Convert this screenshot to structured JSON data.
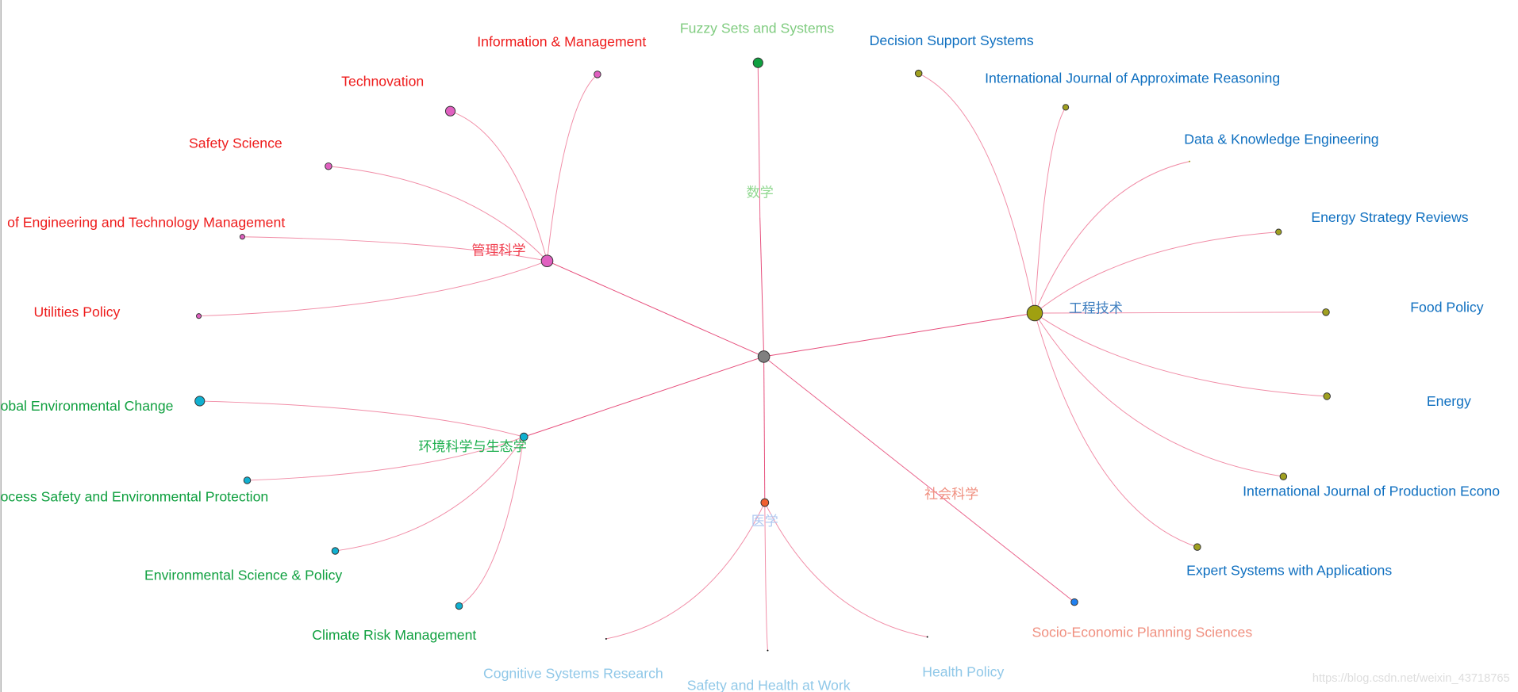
{
  "center": {},
  "clusters": [
    {
      "label": "管理科学"
    },
    {
      "label": "数学"
    },
    {
      "label": "工程技术"
    },
    {
      "label": "环境科学与生态学"
    },
    {
      "label": "医学"
    },
    {
      "label": "社会科学"
    }
  ],
  "journals": [
    {
      "label": "Information & Management"
    },
    {
      "label": "Technovation"
    },
    {
      "label": "Safety Science"
    },
    {
      "label": "of Engineering and Technology Management"
    },
    {
      "label": "Utilities Policy"
    },
    {
      "label": "Fuzzy Sets and Systems"
    },
    {
      "label": "Decision Support Systems"
    },
    {
      "label": "International Journal of Approximate Reasoning"
    },
    {
      "label": "Data & Knowledge Engineering"
    },
    {
      "label": "Energy Strategy Reviews"
    },
    {
      "label": "Food Policy"
    },
    {
      "label": "Energy"
    },
    {
      "label": "International Journal of Production Econo"
    },
    {
      "label": "Expert Systems with Applications"
    },
    {
      "label": "obal Environmental Change"
    },
    {
      "label": "ocess Safety and Environmental Protection"
    },
    {
      "label": "Environmental Science & Policy"
    },
    {
      "label": "Climate Risk Management"
    },
    {
      "label": "Cognitive Systems Research"
    },
    {
      "label": "Safety and Health at Work"
    },
    {
      "label": "Health Policy"
    },
    {
      "label": "Socio-Economic Planning Sciences"
    }
  ],
  "watermark": "https://blog.csdn.net/weixin_43718765"
}
